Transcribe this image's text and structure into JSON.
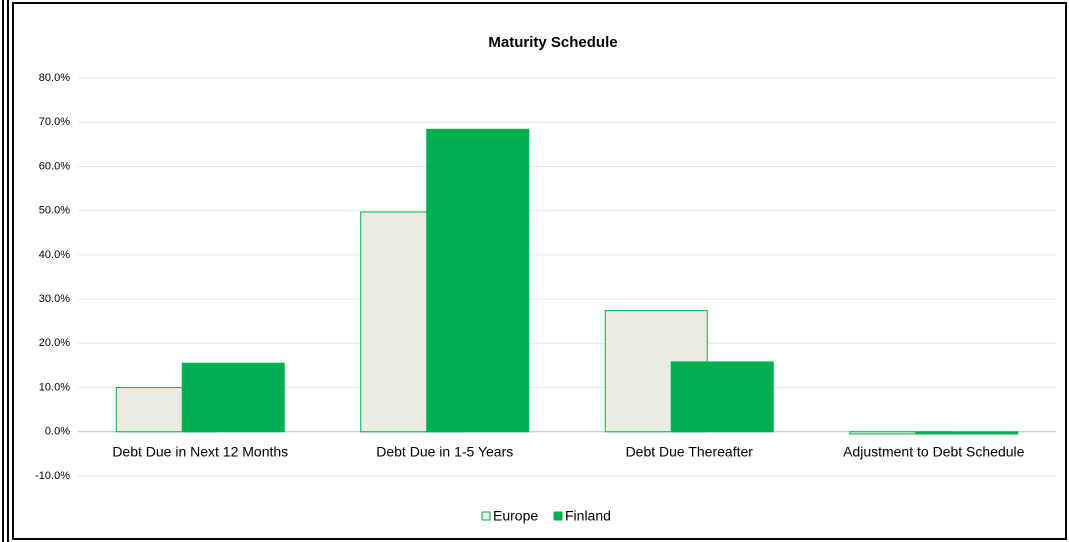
{
  "chart_data": {
    "type": "bar",
    "title": "Maturity Schedule",
    "categories": [
      "Debt Due in Next 12 Months",
      "Debt Due in 1-5 Years",
      "Debt Due Thereafter",
      "Adjustment to Debt Schedule"
    ],
    "series": [
      {
        "name": "Europe",
        "color": "#ecebe2",
        "values": [
          10.0,
          49.7,
          27.4,
          -0.5
        ]
      },
      {
        "name": "Finland",
        "color": "#00b050",
        "values": [
          15.5,
          68.4,
          15.8,
          -0.5
        ]
      }
    ],
    "ylim": [
      -10,
      80
    ],
    "yticks": [
      {
        "value": -10,
        "label": "-10.0%"
      },
      {
        "value": 0,
        "label": "0.0%"
      },
      {
        "value": 10,
        "label": "10.0%"
      },
      {
        "value": 20,
        "label": "20.0%"
      },
      {
        "value": 30,
        "label": "30.0%"
      },
      {
        "value": 40,
        "label": "40.0%"
      },
      {
        "value": 50,
        "label": "50.0%"
      },
      {
        "value": 60,
        "label": "60.0%"
      },
      {
        "value": 70,
        "label": "70.0%"
      },
      {
        "value": 80,
        "label": "80.0%"
      }
    ],
    "grid": true,
    "legend": "bottom"
  }
}
